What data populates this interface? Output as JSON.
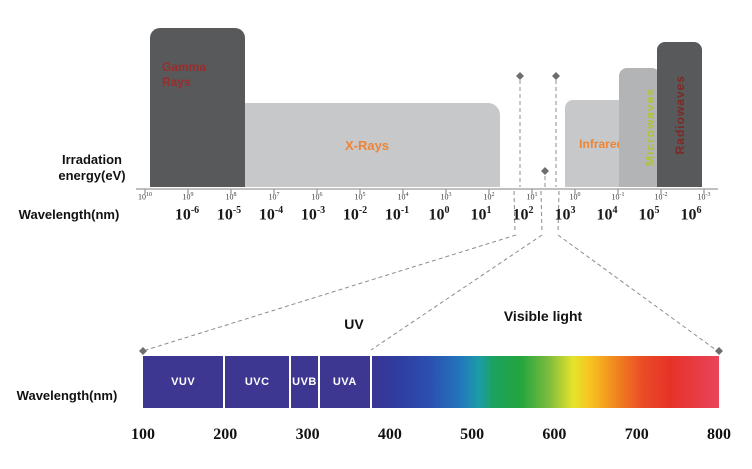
{
  "labels": {
    "energy_axis_line1": "Irradation",
    "energy_axis_line2": "energy(eV)",
    "wavelength_top": "Wavelength(nm)",
    "wavelength_bottom": "Wavelength(nm)",
    "uv": "UV",
    "visible": "Visible light"
  },
  "bands": {
    "gamma": {
      "label": "Gamma Rays"
    },
    "xrays": {
      "label": "X-Rays"
    },
    "infrared": {
      "label": "Infrared"
    },
    "microwaves": {
      "label": "Microwaves"
    },
    "radiowaves": {
      "label": "Radiowaves"
    }
  },
  "top_axis": {
    "energy_labels": [
      "10^10",
      "10^9",
      "10^8",
      "10^7",
      "10^6",
      "10^5",
      "10^4",
      "10^3",
      "10^2",
      "10^1",
      "10^0",
      "10^-1",
      "10^-2",
      "10^-3"
    ],
    "wavelength_labels": [
      "10^-6",
      "10^-5",
      "10^-4",
      "10^-3",
      "10^-2",
      "10^-1",
      "10^0",
      "10^1",
      "10^2",
      "10^3",
      "10^4",
      "10^5",
      "10^6"
    ]
  },
  "bottom_bar": {
    "uv_segments": [
      {
        "label": "VUV",
        "from_nm": 100,
        "to_nm": 200
      },
      {
        "label": "UVC",
        "from_nm": 200,
        "to_nm": 280
      },
      {
        "label": "UVB",
        "from_nm": 280,
        "to_nm": 315
      },
      {
        "label": "UVA",
        "from_nm": 315,
        "to_nm": 378
      }
    ],
    "visible_band": {
      "from_nm": 378,
      "to_nm": 800,
      "gradient": [
        {
          "pct": 0,
          "color": "#3a3493"
        },
        {
          "pct": 8,
          "color": "#2e3da1"
        },
        {
          "pct": 17,
          "color": "#2b51b0"
        },
        {
          "pct": 25,
          "color": "#2374bc"
        },
        {
          "pct": 31,
          "color": "#1b9da6"
        },
        {
          "pct": 35,
          "color": "#1ba25d"
        },
        {
          "pct": 43,
          "color": "#23a53e"
        },
        {
          "pct": 51,
          "color": "#7ebc3d"
        },
        {
          "pct": 58,
          "color": "#e6e32b"
        },
        {
          "pct": 63,
          "color": "#f7c21f"
        },
        {
          "pct": 71,
          "color": "#f0801f"
        },
        {
          "pct": 78,
          "color": "#ea4c26"
        },
        {
          "pct": 86,
          "color": "#e63229"
        },
        {
          "pct": 100,
          "color": "#e9445a"
        }
      ]
    }
  },
  "bottom_axis": {
    "ticks": [
      100,
      200,
      300,
      400,
      500,
      600,
      700,
      800
    ]
  },
  "colors": {
    "dark_block": "#58595b",
    "light_block": "#c7c8ca",
    "mid_block": "#b3b4b6",
    "gamma_label": "#9e2b2b",
    "xray_label": "#ef8435",
    "infrared_label": "#ef8435",
    "microwaves_label": "#b1c33c",
    "radiowaves_label": "#7b2a24",
    "uv_segment": "#3e3792",
    "axis": "#9a9a9a",
    "dashed_line": "#8c8c8c",
    "marker": "#6e6e6e"
  }
}
